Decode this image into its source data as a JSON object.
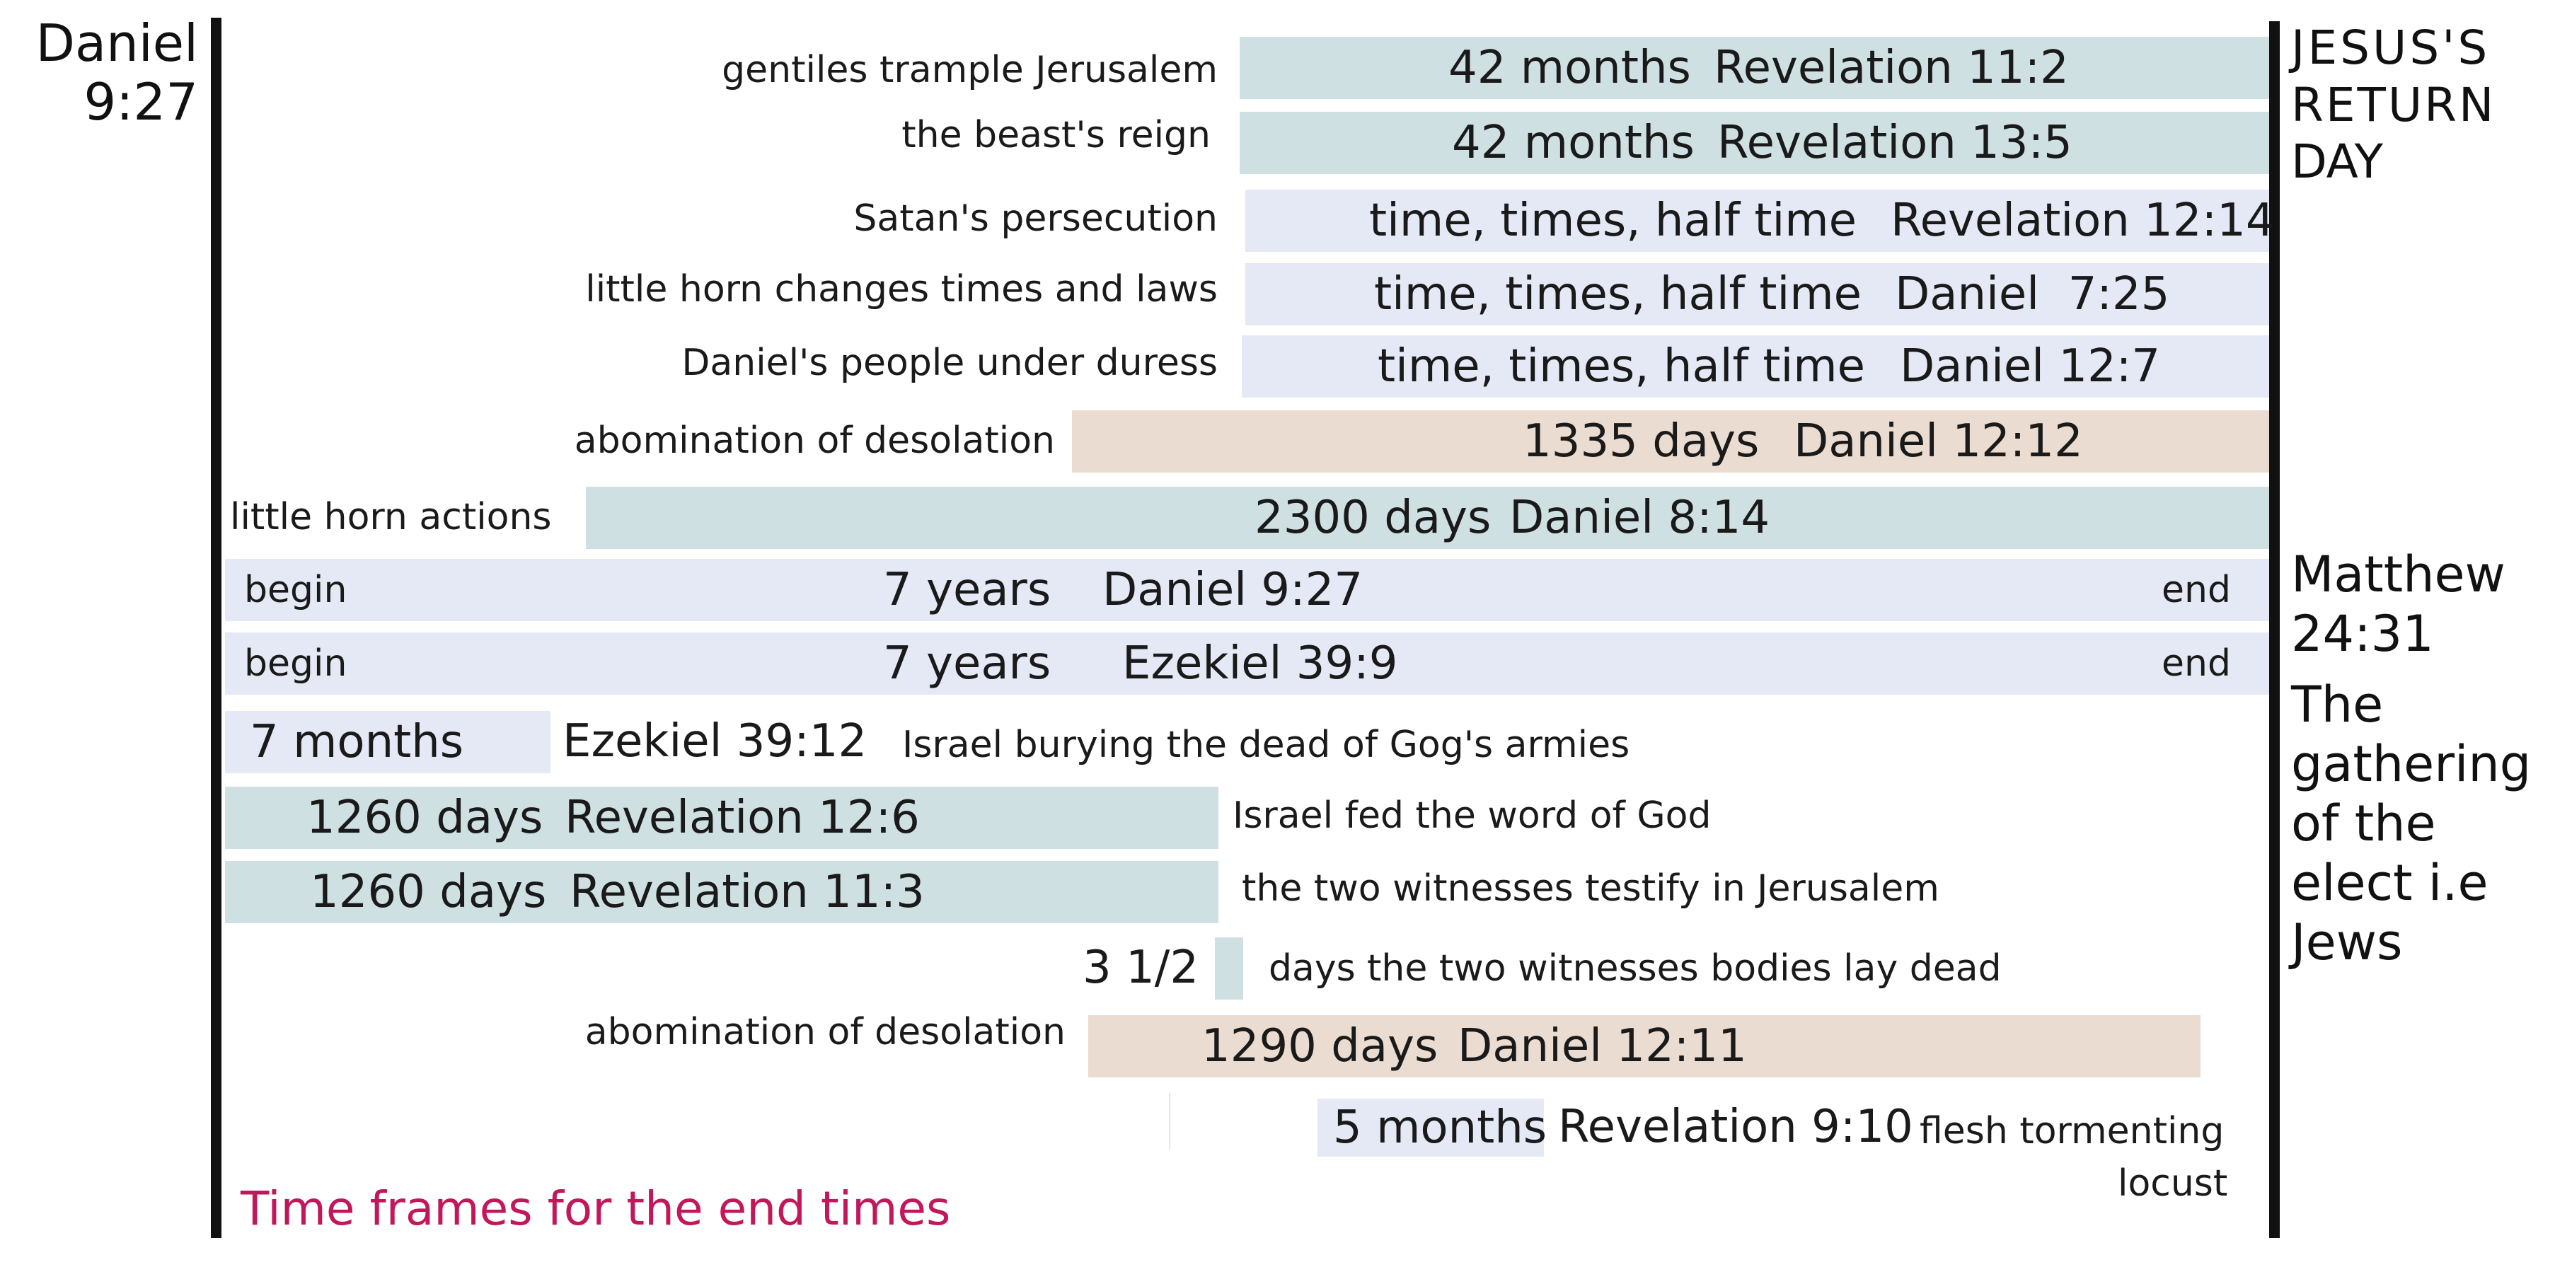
{
  "caption": "Time frames for the end times",
  "left_marker": {
    "line1": "Daniel",
    "line2": "9:27"
  },
  "right_top_marker": {
    "line1": "JESUS'S",
    "line2": "RETURN",
    "line3": "DAY"
  },
  "right_mid_marker": {
    "line1": "Matthew",
    "line2": "24:31",
    "line3": "The",
    "line4": "gathering",
    "line5": "of the",
    "line6": "elect i.e",
    "line7": "Jews"
  },
  "rows": [
    {
      "label": "gentiles trample Jerusalem",
      "duration": "42 months",
      "reference": "Revelation 11:2",
      "color": "#cfe0e3"
    },
    {
      "label": "the beast's reign",
      "duration": "42 months",
      "reference": "Revelation 13:5",
      "color": "#cfe0e3"
    },
    {
      "label": "Satan's persecution",
      "duration": "time, times, half time",
      "reference": "Revelation 12:14",
      "color": "#e4e9f5"
    },
    {
      "label": "little horn changes times and laws",
      "duration": "time, times, half time",
      "reference": "Daniel  7:25",
      "color": "#e4e9f5"
    },
    {
      "label": "Daniel's people under duress",
      "duration": "time, times, half time",
      "reference": "Daniel 12:7",
      "color": "#e4e9f5"
    },
    {
      "label": "abomination of desolation",
      "duration": "1335 days",
      "reference": "Daniel 12:12",
      "color": "#eadcd0"
    },
    {
      "label": "little horn actions",
      "duration": "2300 days",
      "reference": "Daniel 8:14",
      "color": "#cfe0e3"
    },
    {
      "start": "begin",
      "duration": "7 years",
      "reference": "Daniel 9:27",
      "end": "end",
      "color": "#e4e9f5"
    },
    {
      "start": "begin",
      "duration": "7 years",
      "reference": "Ezekiel 39:9",
      "end": "end",
      "color": "#e4e9f5"
    },
    {
      "duration": "7 months",
      "reference": "Ezekiel 39:12",
      "description": "Israel burying the dead of Gog's armies",
      "color": "#e4e9f5"
    },
    {
      "duration": "1260 days",
      "reference": "Revelation 12:6",
      "description": "Israel fed the word of God",
      "color": "#cfe0e3"
    },
    {
      "duration": "1260 days",
      "reference": "Revelation 11:3",
      "description": "the two witnesses testify in Jerusalem",
      "color": "#cfe0e3"
    },
    {
      "duration": "3 1/2",
      "unit": "days",
      "description": "the two witnesses bodies lay dead",
      "color": "#cfe0e3"
    },
    {
      "label": "abomination of desolation",
      "duration": "1290 days",
      "reference": "Daniel 12:11",
      "color": "#eadcd0"
    },
    {
      "duration": "5 months",
      "reference": "Revelation 9:10",
      "description_line1": "flesh tormenting",
      "description_line2": "locust",
      "color": "#e4e9f5"
    }
  ]
}
